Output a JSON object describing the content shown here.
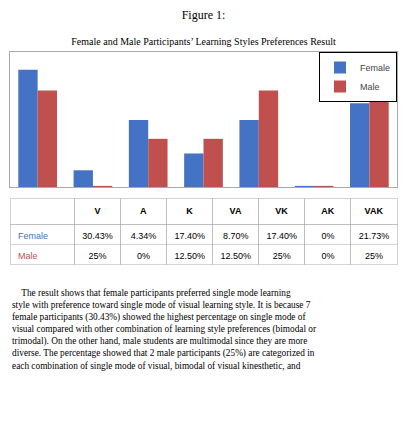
{
  "chart_data": {
    "type": "bar",
    "title": "Figure 1:",
    "subtitle": "Female and Male Participants’ Learning Styles Preferences Result",
    "categories": [
      "V",
      "A",
      "K",
      "VA",
      "VK",
      "AK",
      "VAK"
    ],
    "series": [
      {
        "name": "Female",
        "color": "#4472C4",
        "values": [
          30.43,
          4.34,
          17.4,
          8.7,
          17.4,
          0.3,
          21.73
        ],
        "value_labels": [
          "30.43%",
          "4.34%",
          "17.40%",
          "8.70%",
          "17.40%",
          "0%",
          "21.73%"
        ]
      },
      {
        "name": "Male",
        "color": "#C0504D",
        "values": [
          25,
          0.3,
          12.5,
          12.5,
          25,
          0.3,
          25
        ],
        "value_labels": [
          "25%",
          "0%",
          "12.50%",
          "12.50%",
          "25%",
          "0%",
          "25%"
        ]
      }
    ],
    "ylim": [
      0,
      35
    ],
    "grid": false,
    "legend": "upper right",
    "tick_labels": false,
    "annotations": [
      "    The result shows that female participants preferred single mode learning",
      "style with preference toward single mode of visual learning style. It is because 7",
      "female participants (30.43%) showed the highest percentage on single mode of",
      "visual compared with other combination of learning style preferences (bimodal or",
      "trimodal). On the other hand, male students are multimodal since they are more",
      "diverse. The percentage showed that 2 male participants (25%) are categorized in",
      "each combination of single mode of visual, bimodal of visual kinesthetic, and"
    ]
  }
}
